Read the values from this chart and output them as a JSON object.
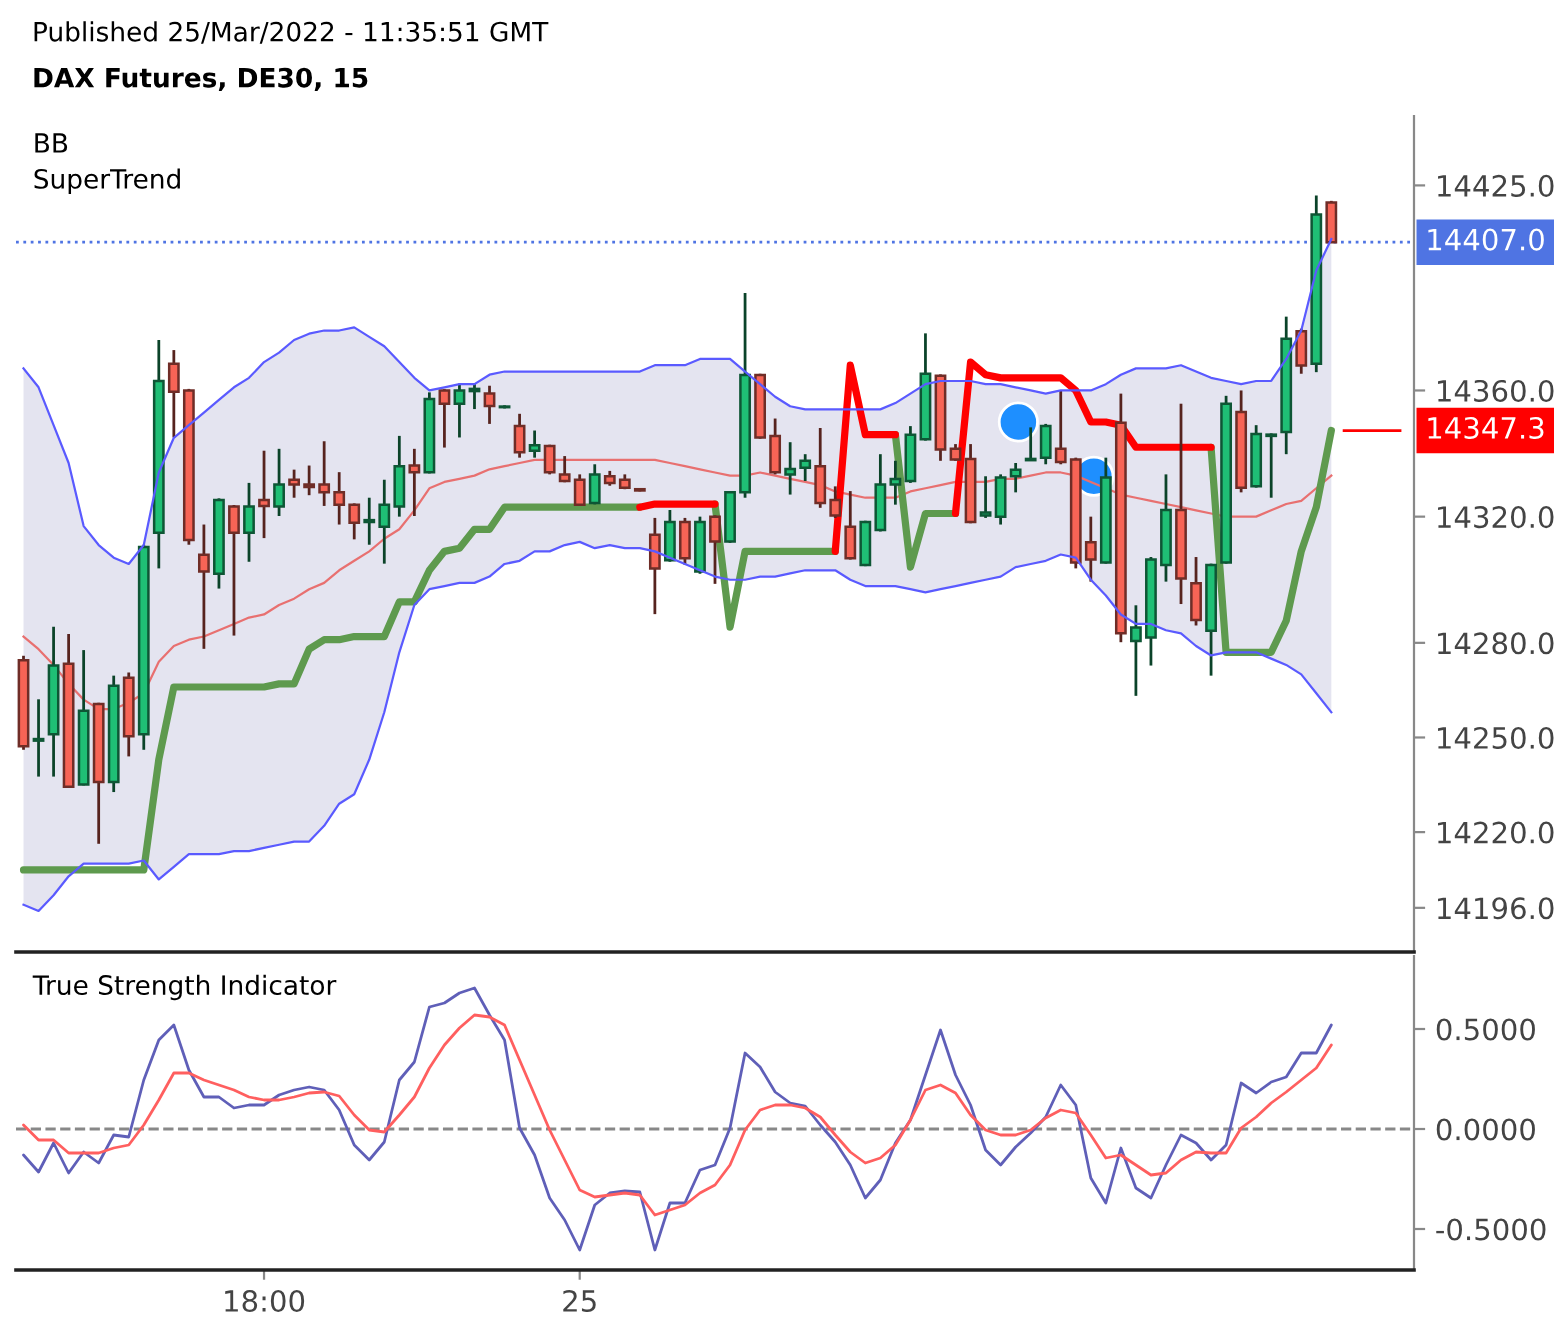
{
  "chart_data": [
    {
      "type": "candlestick",
      "title": "DAX Futures, DE30, 15",
      "subtitle": "Published 25/Mar/2022 - 11:35:51 GMT",
      "annotations": [
        "BB",
        "SuperTrend"
      ],
      "categories": [
        null,
        null,
        null,
        null,
        null,
        null,
        null,
        null,
        null,
        null,
        null,
        null,
        null,
        null,
        null,
        null,
        null,
        null,
        null,
        null,
        null,
        null,
        null,
        null,
        null,
        null,
        null,
        null,
        null,
        null,
        null,
        null,
        null,
        null,
        null,
        null,
        null,
        null,
        null,
        null,
        null,
        null,
        null,
        null,
        null,
        null,
        null,
        null,
        null,
        null,
        null,
        null,
        null,
        null,
        null,
        null,
        null,
        null,
        null,
        null,
        null,
        null,
        null,
        null,
        null,
        null,
        null,
        null,
        null,
        null,
        null,
        null,
        null,
        null,
        null,
        null,
        null,
        null,
        null,
        null,
        null,
        null,
        null,
        null,
        null,
        null,
        null,
        null
      ],
      "ohlc": [
        [
          14274.5,
          14275.9,
          14246.1,
          14247.2
        ],
        [
          14249.0,
          14262.1,
          14237.6,
          14249.5
        ],
        [
          14251.0,
          14285.1,
          14237.6,
          14272.8
        ],
        [
          14273.4,
          14282.8,
          14234.0,
          14234.4
        ],
        [
          14235.1,
          14277.7,
          14234.8,
          14258.5
        ],
        [
          14260.6,
          14261.0,
          14216.3,
          14235.9
        ],
        [
          14235.9,
          14269.6,
          14232.7,
          14266.4
        ],
        [
          14268.9,
          14270.6,
          14244.0,
          14250.4
        ],
        [
          14251.0,
          14311.1,
          14246.1,
          14310.4
        ],
        [
          14314.9,
          14376.0,
          14303.6,
          14363.0
        ],
        [
          14368.5,
          14372.8,
          14345.1,
          14359.6
        ],
        [
          14360.0,
          14360.5,
          14311.1,
          14312.6
        ],
        [
          14307.9,
          14317.5,
          14278.1,
          14302.6
        ],
        [
          14301.9,
          14325.8,
          14297.2,
          14325.3
        ],
        [
          14323.2,
          14323.7,
          14282.3,
          14314.9
        ],
        [
          14314.9,
          14330.7,
          14305.7,
          14323.2
        ],
        [
          14325.3,
          14340.9,
          14313.2,
          14323.4
        ],
        [
          14323.2,
          14341.5,
          14320.2,
          14330.2
        ],
        [
          14331.7,
          14334.9,
          14326.0,
          14330.2
        ],
        [
          14330.2,
          14336.2,
          14326.8,
          14329.4
        ],
        [
          14330.2,
          14343.9,
          14323.4,
          14327.7
        ],
        [
          14327.7,
          14334.1,
          14317.5,
          14323.8
        ],
        [
          14323.8,
          14324.2,
          14312.8,
          14318.1
        ],
        [
          14318.3,
          14326.0,
          14311.1,
          14318.9
        ],
        [
          14316.8,
          14331.7,
          14305.1,
          14323.8
        ],
        [
          14323.2,
          14345.6,
          14320.0,
          14336.0
        ],
        [
          14336.2,
          14341.5,
          14320.2,
          14334.1
        ],
        [
          14334.1,
          14359.4,
          14333.7,
          14357.3
        ],
        [
          14360.0,
          14360.4,
          14341.9,
          14355.8
        ],
        [
          14355.8,
          14362.2,
          14345.1,
          14360.0
        ],
        [
          14359.8,
          14362.2,
          14354.1,
          14360.5
        ],
        [
          14359.0,
          14361.5,
          14349.4,
          14355.1
        ],
        [
          14354.7,
          14355.3,
          14354.3,
          14354.9
        ],
        [
          14348.7,
          14352.6,
          14338.7,
          14340.4
        ],
        [
          14340.9,
          14347.3,
          14338.7,
          14342.6
        ],
        [
          14342.4,
          14342.8,
          14333.4,
          14334.1
        ],
        [
          14333.4,
          14339.2,
          14330.9,
          14331.3
        ],
        [
          14331.7,
          14333.4,
          14323.4,
          14323.8
        ],
        [
          14324.3,
          14336.6,
          14323.9,
          14333.4
        ],
        [
          14332.8,
          14334.5,
          14329.8,
          14330.7
        ],
        [
          14331.7,
          14333.4,
          14328.7,
          14329.2
        ],
        [
          14328.7,
          14329.0,
          14328.0,
          14328.3
        ],
        [
          14314.3,
          14319.6,
          14289.1,
          14303.6
        ],
        [
          14306.2,
          14322.1,
          14305.7,
          14318.3
        ],
        [
          14318.3,
          14319.6,
          14304.7,
          14306.8
        ],
        [
          14302.6,
          14320.0,
          14301.9,
          14318.3
        ],
        [
          14320.0,
          14320.4,
          14298.7,
          14312.1
        ],
        [
          14312.1,
          14328.1,
          14311.7,
          14327.7
        ],
        [
          14327.7,
          14390.9,
          14326.0,
          14364.9
        ],
        [
          14364.9,
          14365.3,
          14344.7,
          14345.1
        ],
        [
          14345.6,
          14351.1,
          14333.4,
          14334.1
        ],
        [
          14333.4,
          14343.6,
          14327.0,
          14335.1
        ],
        [
          14335.5,
          14339.8,
          14331.3,
          14337.7
        ],
        [
          14336.0,
          14348.1,
          14322.8,
          14324.3
        ],
        [
          14325.3,
          14329.6,
          14319.6,
          14320.4
        ],
        [
          14316.8,
          14328.1,
          14306.4,
          14306.8
        ],
        [
          14304.7,
          14318.7,
          14304.3,
          14318.3
        ],
        [
          14315.8,
          14339.8,
          14315.3,
          14330.2
        ],
        [
          14330.2,
          14337.7,
          14323.8,
          14331.9
        ],
        [
          14331.3,
          14348.7,
          14330.7,
          14346.0
        ],
        [
          14344.5,
          14378.1,
          14344.1,
          14365.3
        ],
        [
          14364.7,
          14365.1,
          14337.7,
          14341.3
        ],
        [
          14341.5,
          14343.0,
          14337.7,
          14338.1
        ],
        [
          14338.3,
          14343.0,
          14317.9,
          14318.3
        ],
        [
          14320.4,
          14332.8,
          14319.6,
          14321.3
        ],
        [
          14320.0,
          14333.4,
          14317.5,
          14332.4
        ],
        [
          14332.8,
          14337.0,
          14327.7,
          14334.9
        ],
        [
          14337.9,
          14348.3,
          14337.7,
          14338.3
        ],
        [
          14338.7,
          14349.4,
          14336.6,
          14348.7
        ],
        [
          14341.5,
          14360.0,
          14336.6,
          14337.3
        ],
        [
          14338.1,
          14338.7,
          14303.6,
          14305.5
        ],
        [
          14311.9,
          14320.0,
          14299.4,
          14306.4
        ],
        [
          14305.5,
          14338.7,
          14305.1,
          14332.4
        ],
        [
          14349.8,
          14359.0,
          14280.2,
          14283.0
        ],
        [
          14280.6,
          14291.9,
          14263.2,
          14284.9
        ],
        [
          14281.7,
          14307.2,
          14272.8,
          14306.4
        ],
        [
          14304.7,
          14333.4,
          14299.4,
          14322.1
        ],
        [
          14322.1,
          14355.8,
          14292.3,
          14300.4
        ],
        [
          14298.9,
          14307.2,
          14285.5,
          14287.2
        ],
        [
          14283.8,
          14305.1,
          14269.6,
          14304.7
        ],
        [
          14305.5,
          14358.3,
          14305.1,
          14355.8
        ],
        [
          14353.2,
          14360.0,
          14327.7,
          14329.2
        ],
        [
          14329.6,
          14349.0,
          14329.2,
          14346.2
        ],
        [
          14345.6,
          14346.4,
          14326.0,
          14346.0
        ],
        [
          14346.8,
          14383.4,
          14339.8,
          14376.4
        ],
        [
          14378.8,
          14379.6,
          14365.3,
          14367.9
        ],
        [
          14368.5,
          14421.8,
          14365.8,
          14415.8
        ],
        [
          14419.6,
          14420.1,
          14406.8,
          14407.0
        ]
      ],
      "colors": [
        "#f76456",
        "#1fbf75",
        "#1fbf75",
        "#f76456",
        "#1fbf75",
        "#f76456",
        "#1fbf75",
        "#f76456",
        "#1fbf75",
        "#1fbf75",
        "#f76456",
        "#f76456",
        "#f76456",
        "#1fbf75",
        "#f76456",
        "#1fbf75",
        "#f76456",
        "#1fbf75",
        "#f76456",
        "#f76456",
        "#f76456",
        "#f76456",
        "#f76456",
        "#1fbf75",
        "#1fbf75",
        "#1fbf75",
        "#f76456",
        "#1fbf75",
        "#f76456",
        "#1fbf75",
        "#1fbf75",
        "#f76456",
        "#1fbf75",
        "#f76456",
        "#1fbf75",
        "#f76456",
        "#f76456",
        "#f76456",
        "#1fbf75",
        "#f76456",
        "#f76456",
        "#f76456",
        "#f76456",
        "#1fbf75",
        "#f76456",
        "#1fbf75",
        "#f76456",
        "#1fbf75",
        "#1fbf75",
        "#f76456",
        "#f76456",
        "#1fbf75",
        "#1fbf75",
        "#f76456",
        "#f76456",
        "#f76456",
        "#1fbf75",
        "#1fbf75",
        "#1fbf75",
        "#1fbf75",
        "#1fbf75",
        "#f76456",
        "#f76456",
        "#f76456",
        "#1fbf75",
        "#1fbf75",
        "#1fbf75",
        "#1fbf75",
        "#1fbf75",
        "#f76456",
        "#f76456",
        "#f76456",
        "#1fbf75",
        "#f76456",
        "#1fbf75",
        "#1fbf75",
        "#1fbf75",
        "#f76456",
        "#f76456",
        "#1fbf75",
        "#1fbf75",
        "#f76456",
        "#1fbf75",
        "#1fbf75",
        "#1fbf75",
        "#f76456",
        "#1fbf75",
        "#f76456"
      ],
      "series": [
        {
          "type": "line",
          "color": "#e87070",
          "values": [
            14282,
            14278,
            14273,
            14267,
            14262,
            14259,
            14259,
            14261,
            14264,
            14274,
            14279,
            14281,
            14282,
            14284,
            14286,
            14288,
            14289,
            14292,
            14294,
            14297,
            14299,
            14303,
            14306,
            14309,
            14313,
            14316,
            14322,
            14329,
            14331,
            14332,
            14333,
            14335,
            14336,
            14337,
            14338,
            14338,
            14338,
            14338,
            14338,
            14338,
            14338,
            14338,
            14338,
            14337,
            14336,
            14335,
            14334,
            14333,
            14333,
            14334,
            14333,
            14332,
            14331,
            14330,
            14328,
            14327,
            14326,
            14326,
            14326,
            14328,
            14329,
            14330,
            14331,
            14331,
            14331,
            14332,
            14332,
            14333,
            14334,
            14334,
            14333,
            14331,
            14329,
            14327,
            14326,
            14325,
            14324,
            14323,
            14322,
            14321,
            14320,
            14320,
            14320,
            14322,
            14324,
            14325,
            14329,
            14333
          ],
          "upper": [
            14367,
            14361,
            14349,
            14337,
            14317,
            14311,
            14307,
            14305,
            14311,
            14334,
            14345,
            14349,
            14353,
            14357,
            14361,
            14364,
            14369,
            14372,
            14376,
            14378,
            14379,
            14379,
            14380,
            14377,
            14374,
            14369,
            14364,
            14360,
            14361,
            14362,
            14362,
            14365,
            14366,
            14366,
            14366,
            14366,
            14366,
            14366,
            14366,
            14366,
            14366,
            14366,
            14368,
            14368,
            14368,
            14370,
            14370,
            14370,
            14366,
            14362,
            14358,
            14355,
            14354,
            14354,
            14354,
            14354,
            14354,
            14354,
            14356,
            14359,
            14362,
            14363,
            14363,
            14363,
            14362,
            14362,
            14361,
            14360,
            14359,
            14360,
            14360,
            14360,
            14362,
            14365,
            14367,
            14367,
            14367,
            14368,
            14366,
            14364,
            14363,
            14362,
            14363,
            14363,
            14370,
            14379,
            14398,
            14408
          ],
          "lower": [
            14197,
            14195,
            14200,
            14206,
            14210,
            14210,
            14210,
            14210,
            14211,
            14205,
            14209,
            14213,
            14213,
            14213,
            14214,
            14214,
            14215,
            14216,
            14217,
            14217,
            14222,
            14229,
            14232,
            14243,
            14258,
            14277,
            14292,
            14297,
            14298,
            14299,
            14299,
            14301,
            14305,
            14306,
            14309,
            14309,
            14311,
            14312,
            14310,
            14311,
            14310,
            14310,
            14309,
            14307,
            14305,
            14303,
            14301,
            14300,
            14300,
            14301,
            14301,
            14302,
            14303,
            14303,
            14303,
            14300,
            14298,
            14298,
            14298,
            14297,
            14296,
            14297,
            14298,
            14299,
            14300,
            14301,
            14304,
            14305,
            14306,
            14308,
            14307,
            14300,
            14295,
            14289,
            14286,
            14286,
            14284,
            14283,
            14279,
            14276,
            14277,
            14277,
            14277,
            14275,
            14273,
            14270,
            14264,
            14258
          ]
        },
        {
          "type": "line",
          "color": "#5a5aff",
          "values": [
            14367,
            14361,
            14349,
            14337,
            14317,
            14311,
            14307,
            14305,
            14311,
            14334,
            14345,
            14349,
            14353,
            14357,
            14361,
            14364,
            14369,
            14372,
            14376,
            14378,
            14379,
            14379,
            14380,
            14377,
            14374,
            14369,
            14364,
            14360,
            14361,
            14362,
            14362,
            14365,
            14366,
            14366,
            14366,
            14366,
            14366,
            14366,
            14366,
            14366,
            14366,
            14366,
            14368,
            14368,
            14368,
            14370,
            14370,
            14370,
            14366,
            14362,
            14358,
            14355,
            14354,
            14354,
            14354,
            14354,
            14354,
            14354,
            14356,
            14359,
            14362,
            14363,
            14363,
            14363,
            14362,
            14362,
            14361,
            14360,
            14359,
            14360,
            14360,
            14360,
            14362,
            14365,
            14367,
            14367,
            14367,
            14368,
            14366,
            14364,
            14363,
            14362,
            14363,
            14363,
            14370,
            14379,
            14398,
            14408
          ]
        },
        {
          "type": "line",
          "color": "#5a5aff",
          "values": [
            14197,
            14195,
            14200,
            14206,
            14210,
            14210,
            14210,
            14210,
            14211,
            14205,
            14209,
            14213,
            14213,
            14213,
            14214,
            14214,
            14215,
            14216,
            14217,
            14217,
            14222,
            14229,
            14232,
            14243,
            14258,
            14277,
            14292,
            14297,
            14298,
            14299,
            14299,
            14301,
            14305,
            14306,
            14309,
            14309,
            14311,
            14312,
            14310,
            14311,
            14310,
            14310,
            14309,
            14307,
            14305,
            14303,
            14301,
            14300,
            14300,
            14301,
            14301,
            14302,
            14303,
            14303,
            14303,
            14300,
            14298,
            14298,
            14298,
            14297,
            14296,
            14297,
            14298,
            14299,
            14300,
            14301,
            14304,
            14305,
            14306,
            14308,
            14307,
            14300,
            14295,
            14289,
            14286,
            14286,
            14284,
            14283,
            14279,
            14276,
            14277,
            14277,
            14277,
            14275,
            14273,
            14270,
            14264,
            14258
          ]
        },
        {
          "type": "line",
          "color": "#5e9a4e",
          "values": [
            14208,
            14208,
            14208,
            14208,
            14208,
            14208,
            14208,
            14208,
            14208,
            14243,
            14266,
            14266,
            14266,
            14266,
            14266,
            14266,
            14266,
            14267,
            14267,
            14278,
            14281,
            14281,
            14282,
            14282,
            14282,
            14293,
            14293,
            14303,
            14309,
            14310,
            14316,
            14316,
            14323,
            14323,
            14323,
            14323,
            14323,
            14323,
            14323,
            14323,
            14323,
            14323,
            null,
            null,
            null,
            null,
            14324,
            14285,
            14309,
            14309,
            14309,
            14309,
            14309,
            14309,
            14309,
            null,
            null,
            null,
            14346,
            14304,
            14321,
            14321,
            14321,
            null,
            null,
            null,
            null,
            null,
            null,
            null,
            null,
            null,
            null,
            null,
            null,
            null,
            null,
            null,
            null,
            14342,
            14277,
            14277,
            14277,
            14277,
            14287,
            14309,
            14323,
            14347.3
          ]
        },
        {
          "type": "line",
          "color": "#ff0000",
          "values": [
            null,
            null,
            null,
            null,
            null,
            null,
            null,
            null,
            null,
            null,
            null,
            null,
            null,
            null,
            null,
            null,
            null,
            null,
            null,
            null,
            null,
            null,
            null,
            null,
            null,
            null,
            null,
            null,
            null,
            null,
            null,
            null,
            null,
            null,
            null,
            null,
            null,
            null,
            null,
            null,
            null,
            14323,
            14324,
            14324,
            14324,
            14324,
            14324,
            null,
            null,
            null,
            null,
            null,
            null,
            null,
            14309,
            14368,
            14346,
            14346,
            14346,
            null,
            null,
            null,
            14321,
            14369,
            14365,
            14364,
            14364,
            14364,
            14364,
            14364,
            14360,
            14350,
            14350,
            14349,
            14342,
            14342,
            14342,
            14342,
            14342,
            14342,
            null,
            null,
            null,
            null,
            null,
            null,
            null,
            null
          ]
        }
      ],
      "ylim": [
        14182,
        14447
      ],
      "yticks": [
        {
          "value": 14425,
          "label": "14425.0"
        },
        {
          "value": 14360,
          "label": "14360.0"
        },
        {
          "value": 14320,
          "label": "14320.0"
        },
        {
          "value": 14280,
          "label": "14280.0"
        },
        {
          "value": 14250,
          "label": "14250.0"
        },
        {
          "value": 14220,
          "label": "14220.0"
        },
        {
          "value": 14196,
          "label": "14196.0"
        }
      ],
      "ref_lines": [
        {
          "axis": "y",
          "value": 14407.0,
          "label": "14407.0",
          "color": "#4f74e3",
          "line_style": "dotted"
        },
        {
          "axis": "y",
          "value": 14347.3,
          "label": "14347.3",
          "color": "#ff0000",
          "line_style": "solid"
        }
      ],
      "tick_labels": "y",
      "grid": false,
      "legend": false
    },
    {
      "type": "line",
      "title": "True Strength Indicator",
      "categories": [
        null,
        null,
        null,
        null,
        null,
        null,
        null,
        null,
        null,
        null,
        null,
        null,
        null,
        null,
        null,
        null,
        "18:00",
        null,
        null,
        null,
        null,
        null,
        null,
        null,
        null,
        null,
        null,
        null,
        null,
        null,
        null,
        null,
        null,
        null,
        null,
        null,
        null,
        "25",
        null,
        null,
        null,
        null,
        null,
        null,
        null,
        null,
        null,
        null,
        null,
        null,
        null,
        null,
        null,
        null,
        null,
        null,
        null,
        null,
        null,
        null,
        null,
        null,
        null,
        null,
        null,
        null,
        null,
        null,
        null,
        null,
        null,
        null,
        null,
        null,
        null,
        null,
        null,
        null,
        null,
        null,
        null,
        null,
        null,
        null,
        null,
        null,
        null,
        null
      ],
      "series": [
        {
          "color": "#5f5fb8",
          "values": [
            -0.13,
            -0.215,
            -0.07,
            -0.22,
            -0.115,
            -0.17,
            -0.03,
            -0.04,
            0.245,
            0.445,
            0.52,
            0.295,
            0.16,
            0.16,
            0.105,
            0.12,
            0.12,
            0.17,
            0.195,
            0.21,
            0.195,
            0.095,
            -0.08,
            -0.155,
            -0.065,
            0.245,
            0.335,
            0.61,
            0.63,
            0.68,
            0.705,
            0.57,
            0.445,
            0.005,
            -0.13,
            -0.345,
            -0.455,
            -0.605,
            -0.38,
            -0.32,
            -0.31,
            -0.315,
            -0.605,
            -0.37,
            -0.37,
            -0.205,
            -0.18,
            0.005,
            0.38,
            0.31,
            0.185,
            0.13,
            0.115,
            0.02,
            -0.065,
            -0.18,
            -0.345,
            -0.255,
            -0.07,
            0.045,
            0.27,
            0.495,
            0.27,
            0.12,
            -0.105,
            -0.18,
            -0.09,
            -0.02,
            0.06,
            0.22,
            0.12,
            -0.245,
            -0.37,
            -0.095,
            -0.295,
            -0.345,
            -0.18,
            -0.03,
            -0.07,
            -0.155,
            -0.08,
            0.23,
            0.18,
            0.235,
            0.26,
            0.38,
            0.38,
            0.52
          ]
        },
        {
          "color": "#ff5f5f",
          "values": [
            0.02,
            -0.055,
            -0.055,
            -0.12,
            -0.12,
            -0.12,
            -0.095,
            -0.08,
            0.02,
            0.145,
            0.28,
            0.28,
            0.245,
            0.22,
            0.195,
            0.16,
            0.145,
            0.145,
            0.16,
            0.18,
            0.185,
            0.165,
            0.07,
            -0.005,
            -0.015,
            0.07,
            0.16,
            0.305,
            0.42,
            0.505,
            0.57,
            0.56,
            0.52,
            0.345,
            0.17,
            -0.005,
            -0.155,
            -0.305,
            -0.34,
            -0.33,
            -0.32,
            -0.33,
            -0.43,
            -0.405,
            -0.38,
            -0.32,
            -0.28,
            -0.18,
            -0.005,
            0.095,
            0.12,
            0.12,
            0.105,
            0.06,
            -0.03,
            -0.115,
            -0.17,
            -0.145,
            -0.08,
            0.045,
            0.195,
            0.22,
            0.18,
            0.07,
            -0.005,
            -0.03,
            -0.03,
            -0.005,
            0.055,
            0.095,
            0.08,
            -0.03,
            -0.145,
            -0.13,
            -0.18,
            -0.23,
            -0.22,
            -0.155,
            -0.115,
            -0.12,
            -0.12,
            0.005,
            0.06,
            0.13,
            0.185,
            0.245,
            0.305,
            0.42
          ]
        }
      ],
      "ylim": [
        -0.705,
        0.865
      ],
      "yticks": [
        {
          "value": 0.5,
          "label": "0.5000"
        },
        {
          "value": 0,
          "label": "0.0000"
        },
        {
          "value": -0.5,
          "label": "-0.5000"
        }
      ],
      "ref_lines": [
        {
          "axis": "y",
          "value": 0,
          "label": null,
          "color": "#888888",
          "line_style": "dashed"
        }
      ],
      "grid": false,
      "legend": false
    }
  ]
}
